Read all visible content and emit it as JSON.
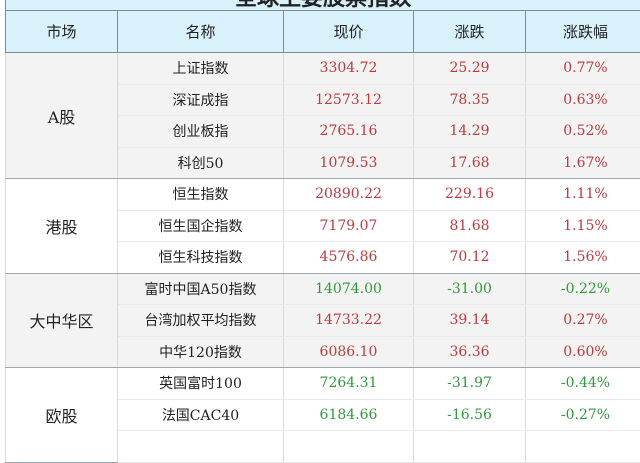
{
  "title": "全球主要股票指数",
  "headers": [
    "市场",
    "名称",
    "现价",
    "涨跌",
    "涨跌幅"
  ],
  "colors": {
    "up": "#c0393b",
    "down": "#2f9a3a",
    "header_bg": "#d8f1fb"
  },
  "groups": [
    {
      "market": "A股",
      "rows": [
        {
          "name": "上证指数",
          "price": "3304.72",
          "change": "25.29",
          "pct": "0.77%"
        },
        {
          "name": "深证成指",
          "price": "12573.12",
          "change": "78.35",
          "pct": "0.63%"
        },
        {
          "name": "创业板指",
          "price": "2765.16",
          "change": "14.29",
          "pct": "0.52%"
        },
        {
          "name": "科创50",
          "price": "1079.53",
          "change": "17.68",
          "pct": "1.67%"
        }
      ]
    },
    {
      "market": "港股",
      "rows": [
        {
          "name": "恒生指数",
          "price": "20890.22",
          "change": "229.16",
          "pct": "1.11%"
        },
        {
          "name": "恒生国企指数",
          "price": "7179.07",
          "change": "81.68",
          "pct": "1.15%"
        },
        {
          "name": "恒生科技指数",
          "price": "4576.86",
          "change": "70.12",
          "pct": "1.56%"
        }
      ]
    },
    {
      "market": "大中华区",
      "rows": [
        {
          "name": "富时中国A50指数",
          "price": "14074.00",
          "change": "-31.00",
          "pct": "-0.22%"
        },
        {
          "name": "台湾加权平均指数",
          "price": "14733.22",
          "change": "39.14",
          "pct": "0.27%"
        },
        {
          "name": "中华120指数",
          "price": "6086.10",
          "change": "36.36",
          "pct": "0.60%"
        }
      ]
    },
    {
      "market": "欧股",
      "rows": [
        {
          "name": "英国富时100",
          "price": "7264.31",
          "change": "-31.97",
          "pct": "-0.44%"
        },
        {
          "name": "法国CAC40",
          "price": "6184.66",
          "change": "-16.56",
          "pct": "-0.27%"
        }
      ]
    }
  ]
}
